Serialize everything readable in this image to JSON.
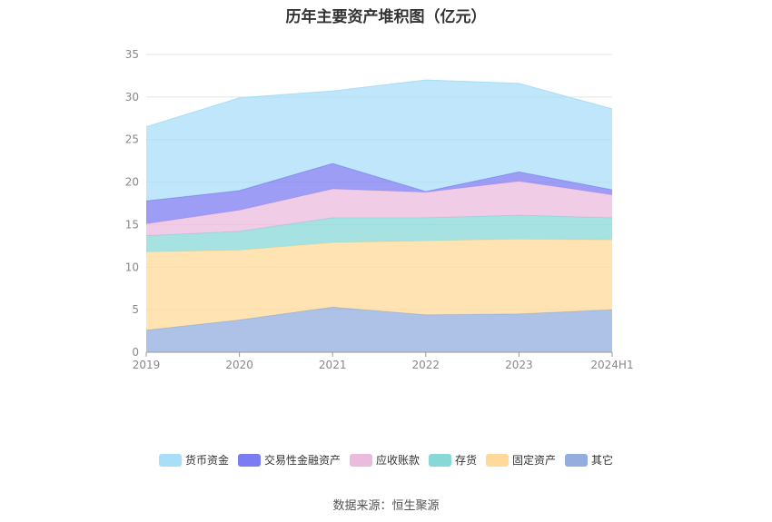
{
  "chart_data": {
    "type": "area",
    "stacked": true,
    "title": "历年主要资产堆积图（亿元）",
    "categories": [
      "2019",
      "2020",
      "2021",
      "2022",
      "2023",
      "2024H1"
    ],
    "ylim": [
      0,
      35
    ],
    "yticks": [
      0,
      5,
      10,
      15,
      20,
      25,
      30,
      35
    ],
    "grid": true,
    "legend_position": "bottom",
    "series": [
      {
        "name": "其它",
        "color": "#92ADDE",
        "values": [
          2.6,
          3.8,
          5.3,
          4.4,
          4.5,
          5.0
        ]
      },
      {
        "name": "固定资产",
        "color": "#FFD99A",
        "values": [
          9.2,
          8.2,
          7.6,
          8.7,
          8.8,
          8.2
        ]
      },
      {
        "name": "存货",
        "color": "#89D8D8",
        "values": [
          1.9,
          2.2,
          2.9,
          2.7,
          2.8,
          2.6
        ]
      },
      {
        "name": "应收账款",
        "color": "#EBBBDD",
        "values": [
          1.4,
          2.5,
          3.4,
          3.0,
          4.0,
          2.7
        ]
      },
      {
        "name": "交易性金融资产",
        "color": "#7C7CF2",
        "values": [
          2.7,
          2.3,
          3.0,
          0.1,
          1.1,
          0.6
        ]
      },
      {
        "name": "货币资金",
        "color": "#A9DEF8",
        "values": [
          8.7,
          10.9,
          8.5,
          13.1,
          10.4,
          9.5
        ]
      }
    ],
    "legend_order": [
      "货币资金",
      "交易性金融资产",
      "应收账款",
      "存货",
      "固定资产",
      "其它"
    ]
  },
  "source_text": "数据来源：恒生聚源"
}
